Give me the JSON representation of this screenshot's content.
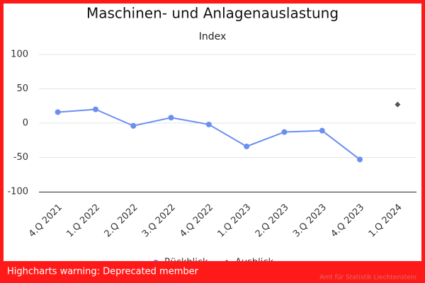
{
  "chart_data": {
    "type": "line",
    "title": "Maschinen- und Anlagenauslastung",
    "subtitle": "Index",
    "categories": [
      "4.Q 2021",
      "1.Q 2022",
      "2.Q 2022",
      "3.Q 2022",
      "4.Q 2022",
      "1.Q 2023",
      "2.Q 2023",
      "3.Q 2023",
      "4.Q 2023",
      "1.Q 2024"
    ],
    "series": [
      {
        "name": "Rückblick",
        "color": "#6b8ff0",
        "marker": "circle",
        "values": [
          16,
          20,
          -4,
          8,
          -2,
          -34,
          -13,
          -11,
          -53,
          null
        ]
      },
      {
        "name": "Ausblick",
        "color": "#555555",
        "marker": "diamond",
        "values": [
          null,
          null,
          null,
          null,
          null,
          null,
          null,
          null,
          null,
          27
        ]
      }
    ],
    "ylim": [
      -100,
      100
    ],
    "yticks": [
      -100,
      -50,
      0,
      50,
      100
    ],
    "grid": true,
    "legend": "bottom",
    "credits": "Amt für Statistik Liechtenstein",
    "warning": "Highcharts warning: Deprecated member"
  }
}
